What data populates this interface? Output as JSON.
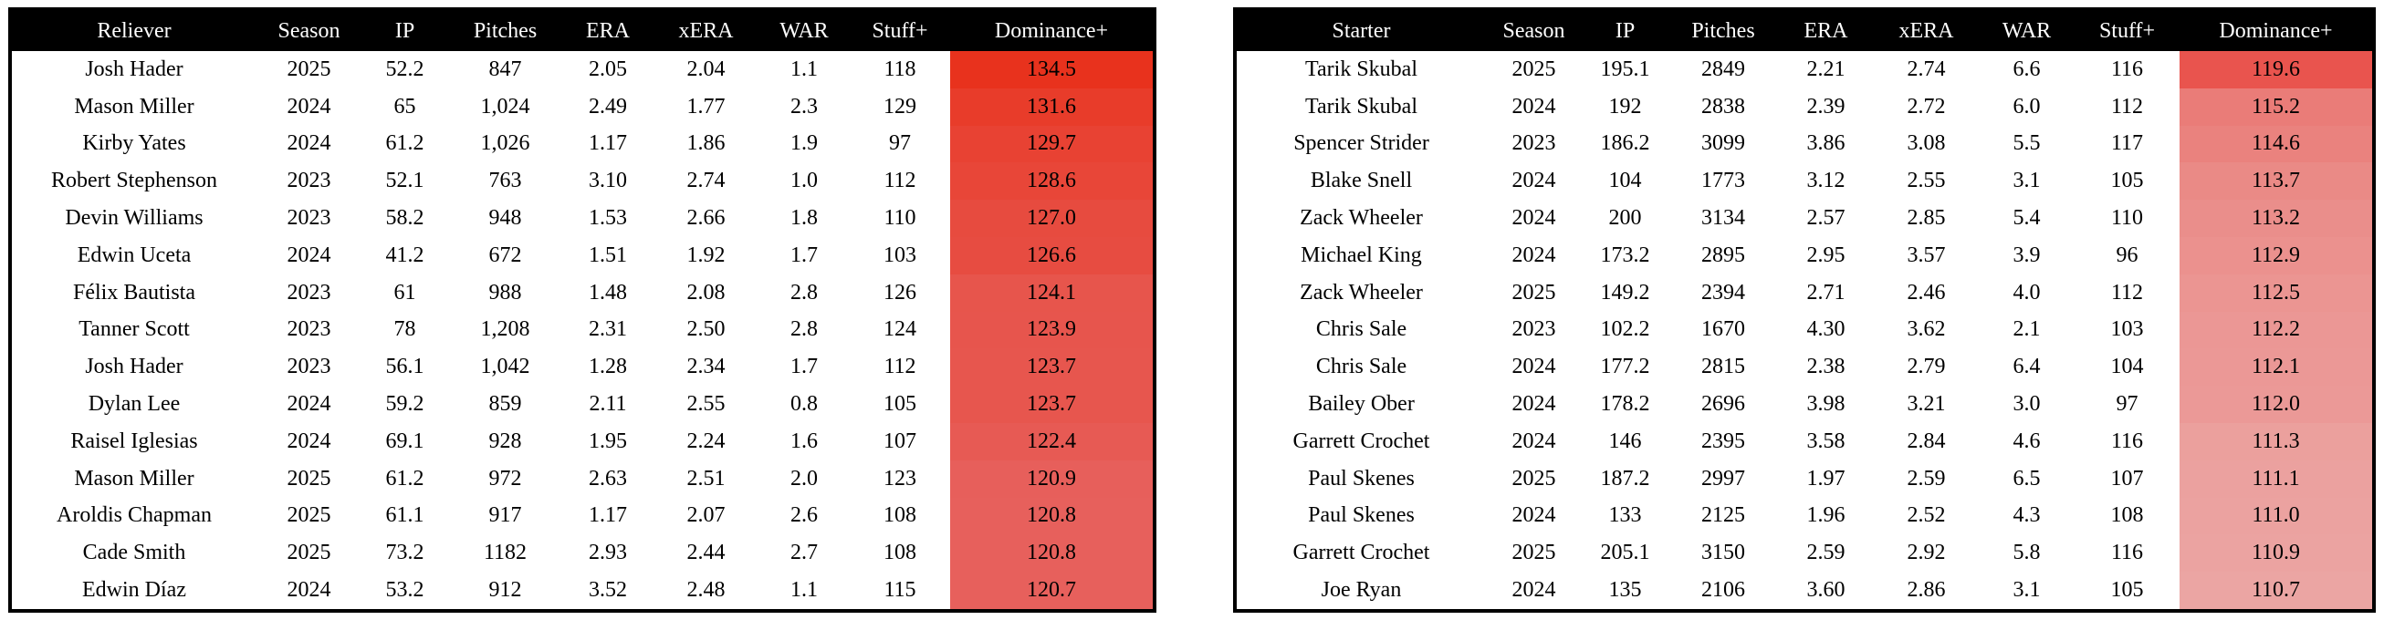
{
  "chart_data": [
    {
      "type": "table",
      "columns": [
        "Reliever",
        "Season",
        "IP",
        "Pitches",
        "ERA",
        "xERA",
        "WAR",
        "Stuff+",
        "Dominance+"
      ],
      "rows": [
        [
          "Josh Hader",
          "2025",
          "52.2",
          "847",
          "2.05",
          "2.04",
          "1.1",
          "118",
          "134.5"
        ],
        [
          "Mason Miller",
          "2024",
          "65",
          "1,024",
          "2.49",
          "1.77",
          "2.3",
          "129",
          "131.6"
        ],
        [
          "Kirby Yates",
          "2024",
          "61.2",
          "1,026",
          "1.17",
          "1.86",
          "1.9",
          "97",
          "129.7"
        ],
        [
          "Robert Stephenson",
          "2023",
          "52.1",
          "763",
          "3.10",
          "2.74",
          "1.0",
          "112",
          "128.6"
        ],
        [
          "Devin Williams",
          "2023",
          "58.2",
          "948",
          "1.53",
          "2.66",
          "1.8",
          "110",
          "127.0"
        ],
        [
          "Edwin Uceta",
          "2024",
          "41.2",
          "672",
          "1.51",
          "1.92",
          "1.7",
          "103",
          "126.6"
        ],
        [
          "Félix Bautista",
          "2023",
          "61",
          "988",
          "1.48",
          "2.08",
          "2.8",
          "126",
          "124.1"
        ],
        [
          "Tanner Scott",
          "2023",
          "78",
          "1,208",
          "2.31",
          "2.50",
          "2.8",
          "124",
          "123.9"
        ],
        [
          "Josh Hader",
          "2023",
          "56.1",
          "1,042",
          "1.28",
          "2.34",
          "1.7",
          "112",
          "123.7"
        ],
        [
          "Dylan Lee",
          "2024",
          "59.2",
          "859",
          "2.11",
          "2.55",
          "0.8",
          "105",
          "123.7"
        ],
        [
          "Raisel Iglesias",
          "2024",
          "69.1",
          "928",
          "1.95",
          "2.24",
          "1.6",
          "107",
          "122.4"
        ],
        [
          "Mason Miller",
          "2025",
          "61.2",
          "972",
          "2.63",
          "2.51",
          "2.0",
          "123",
          "120.9"
        ],
        [
          "Aroldis Chapman",
          "2025",
          "61.1",
          "917",
          "1.17",
          "2.07",
          "2.6",
          "108",
          "120.8"
        ],
        [
          "Cade Smith",
          "2025",
          "73.2",
          "1182",
          "2.93",
          "2.44",
          "2.7",
          "108",
          "120.8"
        ],
        [
          "Edwin Díaz",
          "2024",
          "53.2",
          "912",
          "3.52",
          "2.48",
          "1.1",
          "115",
          "120.7"
        ]
      ],
      "highlight_column": "Dominance+",
      "highlight_color_low": "#e7605c",
      "highlight_color_high": "#e8321d"
    },
    {
      "type": "table",
      "columns": [
        "Starter",
        "Season",
        "IP",
        "Pitches",
        "ERA",
        "xERA",
        "WAR",
        "Stuff+",
        "Dominance+"
      ],
      "rows": [
        [
          "Tarik Skubal",
          "2025",
          "195.1",
          "2849",
          "2.21",
          "2.74",
          "6.6",
          "116",
          "119.6"
        ],
        [
          "Tarik Skubal",
          "2024",
          "192",
          "2838",
          "2.39",
          "2.72",
          "6.0",
          "112",
          "115.2"
        ],
        [
          "Spencer Strider",
          "2023",
          "186.2",
          "3099",
          "3.86",
          "3.08",
          "5.5",
          "117",
          "114.6"
        ],
        [
          "Blake Snell",
          "2024",
          "104",
          "1773",
          "3.12",
          "2.55",
          "3.1",
          "105",
          "113.7"
        ],
        [
          "Zack Wheeler",
          "2024",
          "200",
          "3134",
          "2.57",
          "2.85",
          "5.4",
          "110",
          "113.2"
        ],
        [
          "Michael King",
          "2024",
          "173.2",
          "2895",
          "2.95",
          "3.57",
          "3.9",
          "96",
          "112.9"
        ],
        [
          "Zack Wheeler",
          "2025",
          "149.2",
          "2394",
          "2.71",
          "2.46",
          "4.0",
          "112",
          "112.5"
        ],
        [
          "Chris Sale",
          "2023",
          "102.2",
          "1670",
          "4.30",
          "3.62",
          "2.1",
          "103",
          "112.2"
        ],
        [
          "Chris Sale",
          "2024",
          "177.2",
          "2815",
          "2.38",
          "2.79",
          "6.4",
          "104",
          "112.1"
        ],
        [
          "Bailey Ober",
          "2024",
          "178.2",
          "2696",
          "3.98",
          "3.21",
          "3.0",
          "97",
          "112.0"
        ],
        [
          "Garrett Crochet",
          "2024",
          "146",
          "2395",
          "3.58",
          "2.84",
          "4.6",
          "116",
          "111.3"
        ],
        [
          "Paul Skenes",
          "2025",
          "187.2",
          "2997",
          "1.97",
          "2.59",
          "6.5",
          "107",
          "111.1"
        ],
        [
          "Paul Skenes",
          "2024",
          "133",
          "2125",
          "1.96",
          "2.52",
          "4.3",
          "108",
          "111.0"
        ],
        [
          "Garrett Crochet",
          "2025",
          "205.1",
          "3150",
          "2.59",
          "2.92",
          "5.8",
          "116",
          "110.9"
        ],
        [
          "Joe Ryan",
          "2024",
          "135",
          "2106",
          "3.60",
          "2.86",
          "3.1",
          "105",
          "110.7"
        ]
      ],
      "highlight_column": "Dominance+",
      "highlight_color_low": "#eba5a3",
      "highlight_color_high": "#e9544e"
    }
  ]
}
